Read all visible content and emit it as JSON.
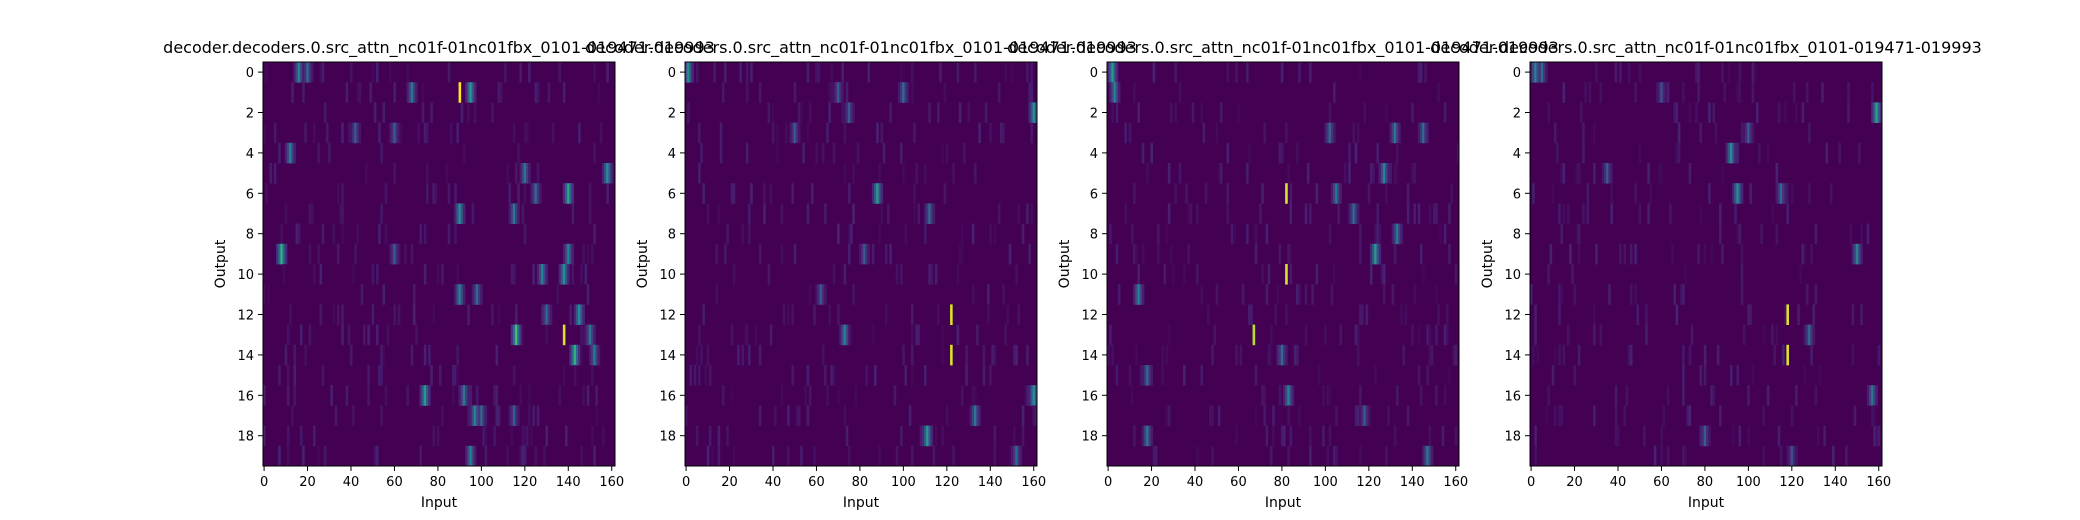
{
  "colors": {
    "background": "#440154",
    "high": "#fde725",
    "mid": "#21918c",
    "low": "#3b528b"
  },
  "chart_data": [
    {
      "type": "heatmap",
      "title": "decoder.decoders.0.src_attn_nc01f-01nc01fbx_0101-019471-019993",
      "xlabel": "Input",
      "ylabel": "Output",
      "x_ticks": [
        "0",
        "20",
        "40",
        "60",
        "80",
        "100",
        "120",
        "140",
        "160"
      ],
      "y_ticks": [
        "0",
        "2",
        "4",
        "6",
        "8",
        "10",
        "12",
        "14",
        "16",
        "18"
      ],
      "xlim": [
        0,
        162
      ],
      "ylim": [
        0,
        20
      ],
      "colormap": "viridis",
      "hot": [
        [
          0,
          16,
          0.45
        ],
        [
          0,
          20,
          0.35
        ],
        [
          1,
          90,
          1.0
        ],
        [
          1,
          95,
          0.55
        ],
        [
          1,
          68,
          0.4
        ],
        [
          3,
          42,
          0.3
        ],
        [
          3,
          60,
          0.3
        ],
        [
          4,
          12,
          0.45
        ],
        [
          5,
          120,
          0.4
        ],
        [
          5,
          158,
          0.5
        ],
        [
          6,
          140,
          0.6
        ],
        [
          6,
          125,
          0.35
        ],
        [
          7,
          90,
          0.5
        ],
        [
          7,
          115,
          0.4
        ],
        [
          9,
          8,
          0.65
        ],
        [
          9,
          140,
          0.45
        ],
        [
          9,
          60,
          0.3
        ],
        [
          10,
          128,
          0.45
        ],
        [
          10,
          138,
          0.5
        ],
        [
          11,
          90,
          0.45
        ],
        [
          11,
          98,
          0.35
        ],
        [
          12,
          145,
          0.5
        ],
        [
          12,
          130,
          0.35
        ],
        [
          13,
          116,
          0.7
        ],
        [
          13,
          138,
          0.95
        ],
        [
          13,
          150,
          0.4
        ],
        [
          14,
          143,
          0.65
        ],
        [
          14,
          152,
          0.4
        ],
        [
          16,
          74,
          0.55
        ],
        [
          16,
          92,
          0.4
        ],
        [
          17,
          97,
          0.45
        ],
        [
          17,
          100,
          0.35
        ],
        [
          17,
          115,
          0.3
        ],
        [
          19,
          95,
          0.45
        ]
      ]
    },
    {
      "type": "heatmap",
      "title": "decoder.decoders.0.src_attn_nc01f-01nc01fbx_0101-019471-019993",
      "xlabel": "Input",
      "ylabel": "Output",
      "x_ticks": [
        "0",
        "20",
        "40",
        "60",
        "80",
        "100",
        "120",
        "140",
        "160"
      ],
      "y_ticks": [
        "0",
        "2",
        "4",
        "6",
        "8",
        "10",
        "12",
        "14",
        "16",
        "18"
      ],
      "xlim": [
        0,
        162
      ],
      "ylim": [
        0,
        20
      ],
      "colormap": "viridis",
      "hot": [
        [
          0,
          1,
          0.5
        ],
        [
          1,
          70,
          0.3
        ],
        [
          1,
          100,
          0.35
        ],
        [
          2,
          160,
          0.5
        ],
        [
          2,
          75,
          0.3
        ],
        [
          3,
          50,
          0.3
        ],
        [
          6,
          88,
          0.55
        ],
        [
          7,
          112,
          0.35
        ],
        [
          9,
          82,
          0.3
        ],
        [
          11,
          62,
          0.3
        ],
        [
          12,
          122,
          0.95
        ],
        [
          13,
          73,
          0.45
        ],
        [
          14,
          122,
          0.95
        ],
        [
          16,
          160,
          0.5
        ],
        [
          17,
          133,
          0.4
        ],
        [
          18,
          111,
          0.55
        ],
        [
          19,
          152,
          0.35
        ]
      ]
    },
    {
      "type": "heatmap",
      "title": "decoder.decoders.0.src_attn_nc01f-01nc01fbx_0101-019471-019993",
      "xlabel": "Input",
      "ylabel": "Output",
      "x_ticks": [
        "0",
        "20",
        "40",
        "60",
        "80",
        "100",
        "120",
        "140",
        "160"
      ],
      "y_ticks": [
        "0",
        "2",
        "4",
        "6",
        "8",
        "10",
        "12",
        "14",
        "16",
        "18"
      ],
      "xlim": [
        0,
        162
      ],
      "ylim": [
        0,
        20
      ],
      "colormap": "viridis",
      "hot": [
        [
          0,
          2,
          0.55
        ],
        [
          1,
          3,
          0.45
        ],
        [
          3,
          102,
          0.35
        ],
        [
          3,
          132,
          0.4
        ],
        [
          3,
          145,
          0.35
        ],
        [
          5,
          127,
          0.45
        ],
        [
          6,
          82,
          0.95
        ],
        [
          6,
          105,
          0.4
        ],
        [
          7,
          113,
          0.35
        ],
        [
          8,
          133,
          0.4
        ],
        [
          9,
          123,
          0.55
        ],
        [
          10,
          82,
          0.95
        ],
        [
          11,
          14,
          0.45
        ],
        [
          13,
          67,
          0.9
        ],
        [
          14,
          80,
          0.35
        ],
        [
          15,
          18,
          0.35
        ],
        [
          16,
          83,
          0.45
        ],
        [
          17,
          118,
          0.3
        ],
        [
          18,
          18,
          0.4
        ],
        [
          19,
          147,
          0.4
        ]
      ]
    },
    {
      "type": "heatmap",
      "title": "decoder.decoders.0.src_attn_nc01f-01nc01fbx_0101-019471-019993",
      "xlabel": "Input",
      "ylabel": "Output",
      "x_ticks": [
        "0",
        "20",
        "40",
        "60",
        "80",
        "100",
        "120",
        "140",
        "160"
      ],
      "y_ticks": [
        "0",
        "2",
        "4",
        "6",
        "8",
        "10",
        "12",
        "14",
        "16",
        "18"
      ],
      "xlim": [
        0,
        162
      ],
      "ylim": [
        0,
        20
      ],
      "colormap": "viridis",
      "hot": [
        [
          0,
          2,
          0.45
        ],
        [
          0,
          5,
          0.35
        ],
        [
          1,
          60,
          0.25
        ],
        [
          2,
          159,
          0.6
        ],
        [
          3,
          100,
          0.3
        ],
        [
          4,
          92,
          0.5
        ],
        [
          5,
          35,
          0.3
        ],
        [
          6,
          95,
          0.5
        ],
        [
          6,
          115,
          0.35
        ],
        [
          9,
          150,
          0.45
        ],
        [
          12,
          118,
          0.95
        ],
        [
          13,
          128,
          0.35
        ],
        [
          14,
          118,
          0.95
        ],
        [
          16,
          157,
          0.4
        ],
        [
          18,
          80,
          0.3
        ],
        [
          19,
          120,
          0.25
        ]
      ]
    }
  ]
}
